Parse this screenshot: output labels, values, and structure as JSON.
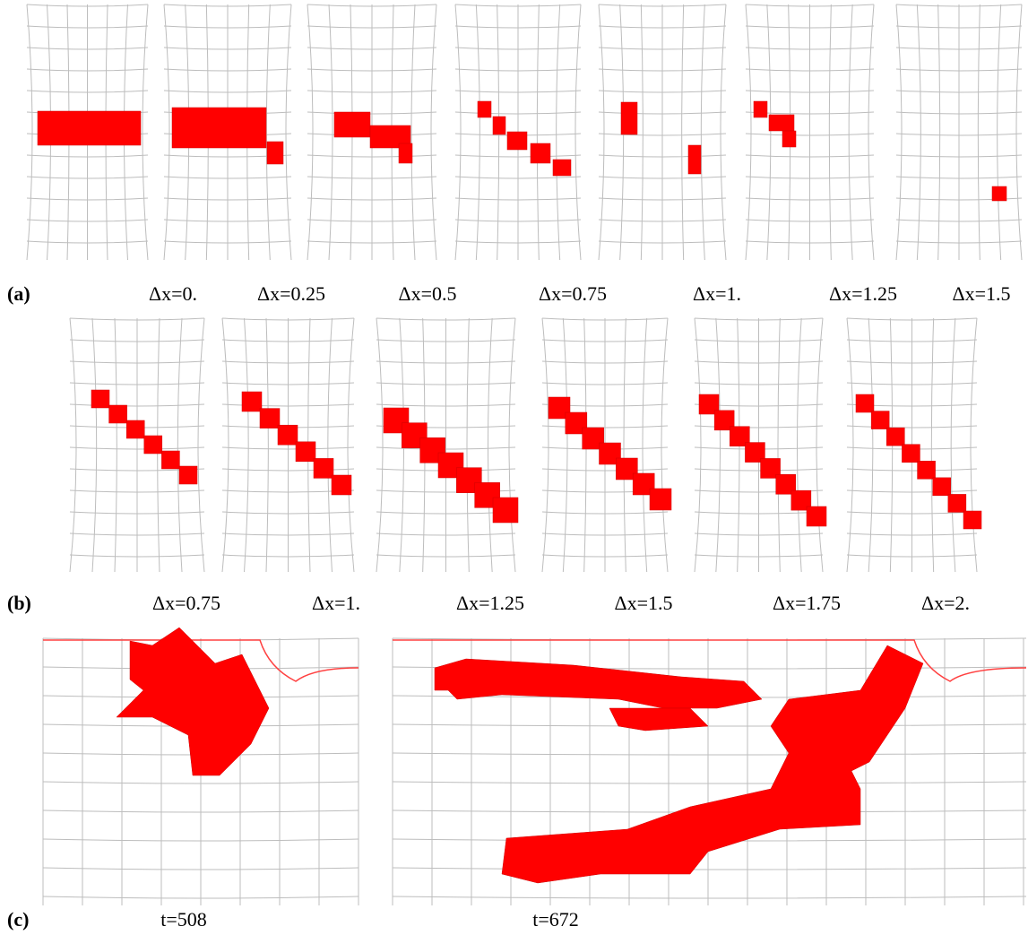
{
  "rows": [
    {
      "label": "(a)",
      "captions": [
        "Δx=0.",
        "Δx=0.25",
        "Δx=0.5",
        "Δx=0.75",
        "Δx=1.",
        "Δx=1.25",
        "Δx=1.5"
      ]
    },
    {
      "label": "(b)",
      "captions": [
        "Δx=0.75",
        "Δx=1.",
        "Δx=1.25",
        "Δx=1.5",
        "Δx=1.75",
        "Δx=2."
      ]
    },
    {
      "label": "(c)",
      "captions": [
        "t=508",
        "t=672"
      ]
    }
  ]
}
